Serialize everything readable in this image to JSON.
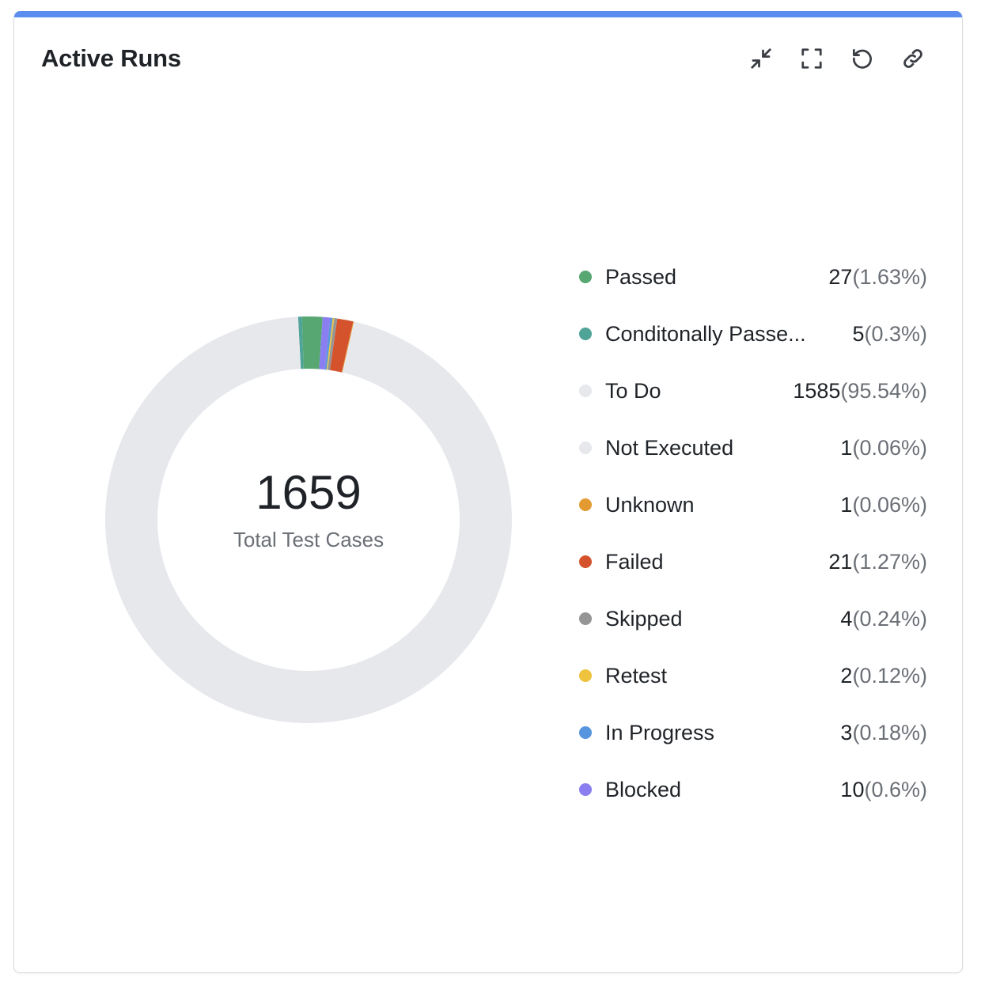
{
  "card": {
    "title": "Active Runs",
    "accent_color": "#5b8def",
    "toolbar": [
      {
        "name": "collapse-button",
        "icon": "collapse-arrows-icon"
      },
      {
        "name": "fullscreen-button",
        "icon": "fullscreen-icon"
      },
      {
        "name": "refresh-button",
        "icon": "refresh-icon"
      },
      {
        "name": "link-button",
        "icon": "link-icon"
      }
    ]
  },
  "chart_data": {
    "type": "pie",
    "variant": "donut",
    "center_value": "1659",
    "center_label": "Total Test Cases",
    "start_angle_deg": 4,
    "slices": [
      {
        "label": "Passed",
        "value": 27,
        "percent_text": "(1.63%)",
        "color": "#57a773"
      },
      {
        "label": "Conditonally Passe...",
        "value": 5,
        "percent_text": "(0.3%)",
        "color": "#4fa397"
      },
      {
        "label": "To Do",
        "value": 1585,
        "percent_text": "(95.54%)",
        "color": "#e6e8ec"
      },
      {
        "label": "Not Executed",
        "value": 1,
        "percent_text": "(0.06%)",
        "color": "#e6e8ec"
      },
      {
        "label": "Unknown",
        "value": 1,
        "percent_text": "(0.06%)",
        "color": "#e39a30"
      },
      {
        "label": "Failed",
        "value": 21,
        "percent_text": "(1.27%)",
        "color": "#d5532c"
      },
      {
        "label": "Skipped",
        "value": 4,
        "percent_text": "(0.24%)",
        "color": "#959595"
      },
      {
        "label": "Retest",
        "value": 2,
        "percent_text": "(0.12%)",
        "color": "#efc33e"
      },
      {
        "label": "In Progress",
        "value": 3,
        "percent_text": "(0.18%)",
        "color": "#5796df"
      },
      {
        "label": "Blocked",
        "value": 10,
        "percent_text": "(0.6%)",
        "color": "#8a7ef0"
      }
    ]
  }
}
